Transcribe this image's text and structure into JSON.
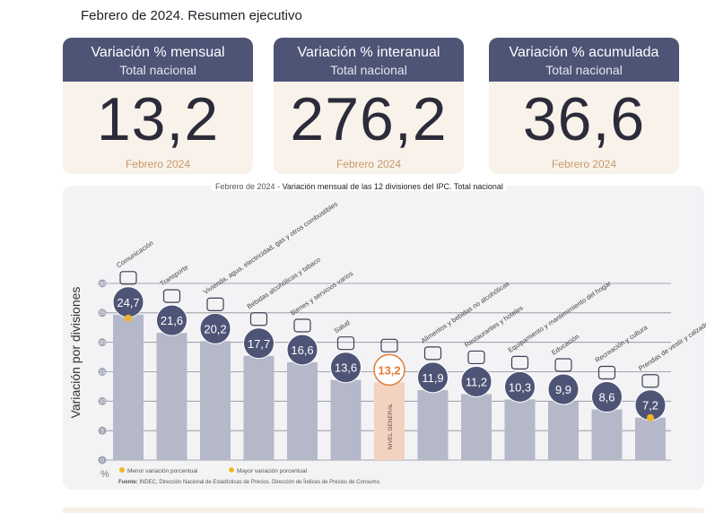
{
  "header": {
    "title": "Febrero de 2024. Resumen ejecutivo"
  },
  "kpis": [
    {
      "title": "Variación % mensual",
      "subtitle": "Total nacional",
      "value": "13,2",
      "date": "Febrero 2024"
    },
    {
      "title": "Variación % interanual",
      "subtitle": "Total nacional",
      "value": "276,2",
      "date": "Febrero 2024"
    },
    {
      "title": "Variación % acumulada",
      "subtitle": "Total nacional",
      "value": "36,6",
      "date": "Febrero 2024"
    }
  ],
  "colors": {
    "header": "#4e5476",
    "bar": "#b4b8c8",
    "highlight_bar": "#f3d2c0",
    "accent": "#e07b39",
    "marker": "#f0b429"
  },
  "chart_data": {
    "type": "bar",
    "title_prefix": "Febrero de 2024 -",
    "title": "Variación mensual de las 12 divisiones del IPC. Total nacional",
    "ylabel": "Variación por divisiones",
    "yunit": "%",
    "ylim": [
      0,
      30
    ],
    "yticks": [
      0,
      5,
      10,
      15,
      20,
      25,
      30
    ],
    "categories": [
      "Comunicación",
      "Transporte",
      "Vivienda, agua, electricidad, gas y otros combustibles",
      "Bebidas alcohólicas y tabaco",
      "Bienes y servicios varios",
      "Salud",
      "NIVEL GENERAL",
      "Alimentos y bebidas no alcohólicas",
      "Restaurantes y hoteles",
      "Equipamiento y mantenimiento del hogar",
      "Educación",
      "Recreación y cultura",
      "Prendas de vestir y calzado"
    ],
    "values": [
      24.7,
      21.6,
      20.2,
      17.7,
      16.6,
      13.6,
      13.2,
      11.9,
      11.2,
      10.3,
      9.9,
      8.6,
      7.2
    ],
    "value_labels": [
      "24,7",
      "21,6",
      "20,2",
      "17,7",
      "16,6",
      "13,6",
      "13,2",
      "11,9",
      "11,2",
      "10,3",
      "9,9",
      "8,6",
      "7,2"
    ],
    "icons": [
      "phone-icon",
      "car-icon",
      "bulb-icon",
      "bottle-icon",
      "scissors-icon",
      "medical-kit-icon",
      "shopping-bag-icon",
      "bread-icon",
      "cutlery-icon",
      "oven-icon",
      "book-icon",
      "beach-icon",
      "shirt-icon"
    ],
    "highlight_index": 6,
    "max_index": 0,
    "min_index": 12,
    "legend": {
      "min": "Menor variación porcentual",
      "max": "Mayor variación porcentual"
    },
    "source_label": "Fuente:",
    "source": "INDEC, Dirección Nacional de Estadísticas de Precios. Dirección de Índices de Precios de Consumo."
  }
}
